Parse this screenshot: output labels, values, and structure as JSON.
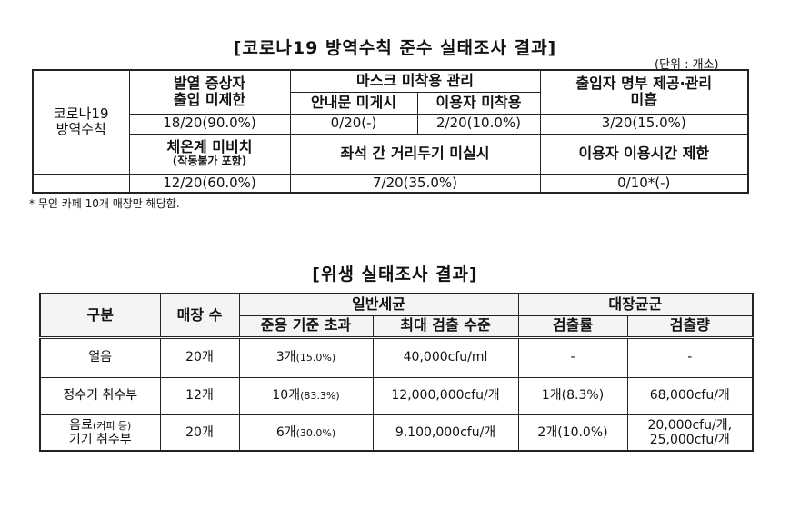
{
  "title1": "[코로나19 방역수칙 준수 실태조사 결과]",
  "unit_note": "(단위 : 개소)",
  "t1": {
    "row_label": [
      "코로나19",
      "방역수칙"
    ],
    "fever": [
      "발열 증상자",
      "출입 미제한"
    ],
    "mask_group": "마스크 미착용 관리",
    "mask_sign": "안내문 미게시",
    "mask_user": "이용자 미착용",
    "register": [
      "출입자 명부 제공·관리",
      "미흡"
    ],
    "v_fever": "18/20(90.0%)",
    "v_mask_sign": "0/20(-)",
    "v_mask_user": "2/20(10.0%)",
    "v_register": "3/20(15.0%)",
    "thermo": "체온계 미비치",
    "thermo_sub": "(작동불가 포함)",
    "distance": "좌석 간 거리두기 미실시",
    "time_limit": "이용자 이용시간 제한",
    "v_thermo": "12/20(60.0%)",
    "v_distance": "7/20(35.0%)",
    "v_time_limit": "0/10*(-)"
  },
  "footnote": "* 무인 카페 10개 매장만 해당함.",
  "title2": "[위생 실태조사 결과]",
  "t2": {
    "h_category": "구분",
    "h_stores": "매장 수",
    "h_general": "일반세균",
    "h_coliform": "대장균군",
    "h_exceed": "준용 기준 초과",
    "h_max": "최대 검출 수준",
    "h_rate": "검출률",
    "h_amount": "검출량",
    "rows": [
      {
        "category": "얼음",
        "category_small": "",
        "category_line2": "",
        "stores": "20개",
        "exceed": "3개",
        "exceed_pct": "(15.0%)",
        "max": "40,000cfu/ml",
        "rate": "-",
        "amount": "-",
        "amount2": ""
      },
      {
        "category": "정수기 취수부",
        "category_small": "",
        "category_line2": "",
        "stores": "12개",
        "exceed": "10개",
        "exceed_pct": "(83.3%)",
        "max": "12,000,000cfu/개",
        "rate": "1개(8.3%)",
        "amount": "68,000cfu/개",
        "amount2": ""
      },
      {
        "category": "음료",
        "category_small": "(커피 등)",
        "category_line2": "기기 취수부",
        "stores": "20개",
        "exceed": "6개",
        "exceed_pct": "(30.0%)",
        "max": "9,100,000cfu/개",
        "rate": "2개(10.0%)",
        "amount": "20,000cfu/개,",
        "amount2": "25,000cfu/개"
      }
    ]
  }
}
